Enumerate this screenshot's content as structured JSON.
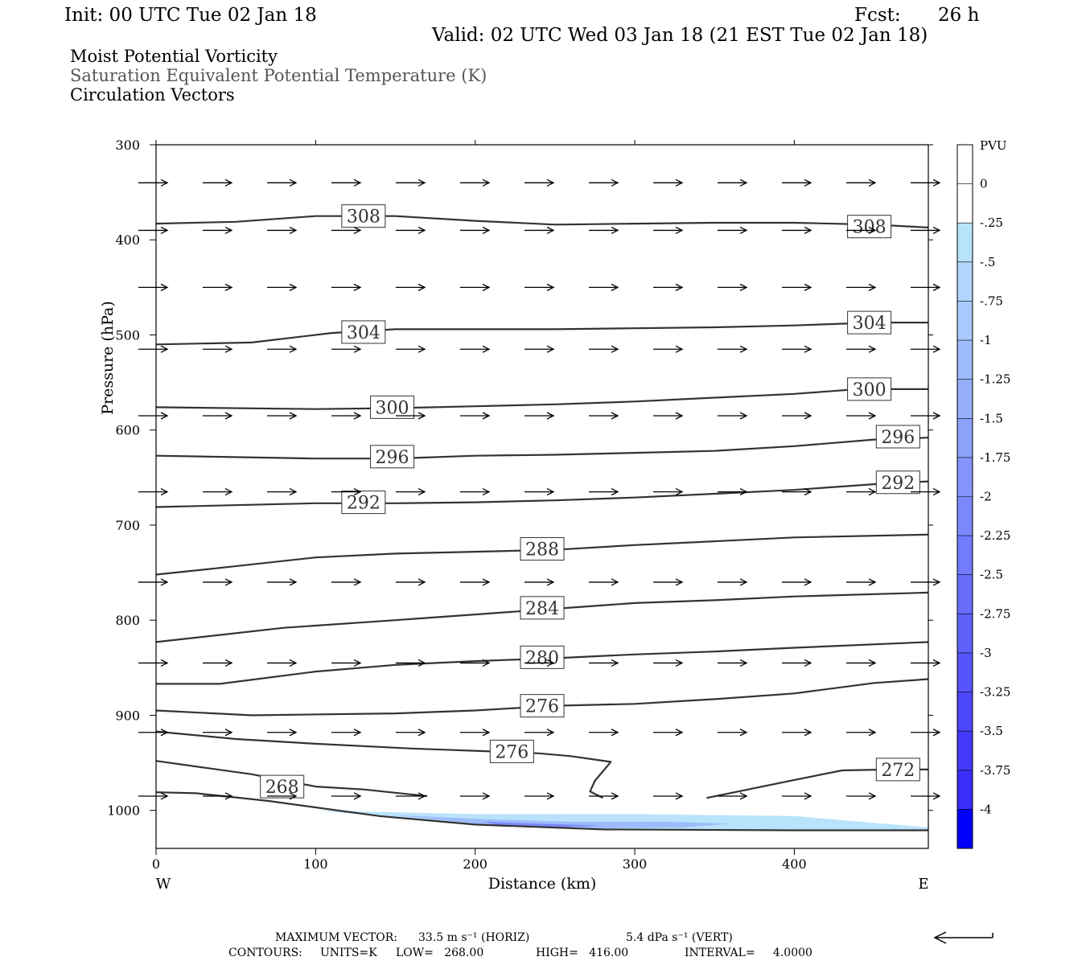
{
  "header": {
    "init": "Init: 00 UTC Tue 02 Jan 18",
    "fcst_label": "Fcst:",
    "fcst_value": "26 h",
    "valid": "Valid: 02 UTC Wed 03 Jan 18 (21 EST Tue 02 Jan 18)"
  },
  "titles": {
    "line1": "Moist Potential Vorticity",
    "line2": "Saturation Equivalent Potential Temperature (K)",
    "line3": "Circulation Vectors"
  },
  "footer": {
    "max_vector_label": "MAXIMUM VECTOR:",
    "max_vector_horiz": "33.5 m s⁻¹ (HORIZ)",
    "max_vector_vert": "5.4 dPa s⁻¹ (VERT)",
    "contours_label": "CONTOURS:",
    "units": "UNITS=K",
    "low": "LOW=   268.00",
    "high": "HIGH=   416.00",
    "interval": "INTERVAL=     4.0000"
  },
  "chart_data": {
    "type": "contour_cross_section",
    "xlabel": "Distance (km)",
    "ylabel": "Pressure (hPa)",
    "xlim": [
      0,
      484
    ],
    "ylim": [
      1040,
      300
    ],
    "x_ticks": [
      0,
      100,
      200,
      300,
      400
    ],
    "y_ticks": [
      300,
      400,
      500,
      600,
      700,
      800,
      900,
      1000
    ],
    "x_end_labels": {
      "left": "W",
      "right": "E"
    },
    "colorbar": {
      "title": "PVU",
      "labels": [
        "0",
        "-.25",
        "-.5",
        "-.75",
        "-1",
        "-1.25",
        "-1.5",
        "-1.75",
        "-2",
        "-2.25",
        "-2.5",
        "-2.75",
        "-3",
        "-3.25",
        "-3.5",
        "-3.75",
        "-4"
      ],
      "colors": [
        "#ffffff",
        "#ffffff",
        "#b9e3fb",
        "#b0d6fb",
        "#a7c9fb",
        "#9ebcfb",
        "#95affb",
        "#8ca2fb",
        "#8395fb",
        "#7a88fb",
        "#717bfb",
        "#686efb",
        "#5f61fb",
        "#5654fb",
        "#4d47fb",
        "#443afb",
        "#3b2dfb",
        "#0000fb"
      ]
    },
    "contour_color": "#333333",
    "contours": [
      {
        "label": "308",
        "points": [
          [
            0,
            383
          ],
          [
            50,
            381
          ],
          [
            100,
            375
          ],
          [
            150,
            375
          ],
          [
            200,
            380
          ],
          [
            250,
            384
          ],
          [
            300,
            383
          ],
          [
            350,
            382
          ],
          [
            400,
            382
          ],
          [
            450,
            384
          ],
          [
            484,
            387
          ]
        ],
        "label_positions": [
          [
            130,
            375
          ],
          [
            447,
            386
          ]
        ]
      },
      {
        "label": "304",
        "points": [
          [
            0,
            510
          ],
          [
            60,
            508
          ],
          [
            110,
            498
          ],
          [
            150,
            494
          ],
          [
            200,
            494
          ],
          [
            250,
            494
          ],
          [
            300,
            493
          ],
          [
            350,
            492
          ],
          [
            400,
            490
          ],
          [
            450,
            487
          ],
          [
            484,
            487
          ]
        ],
        "label_positions": [
          [
            130,
            497
          ],
          [
            447,
            487
          ]
        ]
      },
      {
        "label": "300",
        "points": [
          [
            0,
            576
          ],
          [
            100,
            578
          ],
          [
            150,
            577
          ],
          [
            200,
            575
          ],
          [
            250,
            573
          ],
          [
            300,
            570
          ],
          [
            350,
            566
          ],
          [
            400,
            562
          ],
          [
            440,
            557
          ],
          [
            484,
            557
          ]
        ],
        "label_positions": [
          [
            148,
            576
          ],
          [
            447,
            557
          ]
        ]
      },
      {
        "label": "296",
        "points": [
          [
            0,
            627
          ],
          [
            100,
            630
          ],
          [
            150,
            630
          ],
          [
            200,
            627
          ],
          [
            250,
            626
          ],
          [
            300,
            624
          ],
          [
            350,
            622
          ],
          [
            400,
            617
          ],
          [
            450,
            610
          ],
          [
            484,
            608
          ]
        ],
        "label_positions": [
          [
            148,
            628
          ],
          [
            465,
            607
          ]
        ]
      },
      {
        "label": "292",
        "points": [
          [
            0,
            681
          ],
          [
            100,
            677
          ],
          [
            150,
            677
          ],
          [
            200,
            676
          ],
          [
            250,
            674
          ],
          [
            300,
            671
          ],
          [
            350,
            667
          ],
          [
            400,
            663
          ],
          [
            450,
            657
          ],
          [
            484,
            654
          ]
        ],
        "label_positions": [
          [
            130,
            676
          ],
          [
            465,
            655
          ]
        ]
      },
      {
        "label": "288",
        "points": [
          [
            0,
            752
          ],
          [
            40,
            745
          ],
          [
            100,
            734
          ],
          [
            150,
            730
          ],
          [
            200,
            728
          ],
          [
            250,
            726
          ],
          [
            300,
            721
          ],
          [
            350,
            717
          ],
          [
            400,
            713
          ],
          [
            484,
            710
          ]
        ],
        "label_positions": [
          [
            242,
            725
          ]
        ]
      },
      {
        "label": "284",
        "points": [
          [
            0,
            823
          ],
          [
            80,
            808
          ],
          [
            150,
            800
          ],
          [
            200,
            794
          ],
          [
            250,
            788
          ],
          [
            300,
            782
          ],
          [
            350,
            779
          ],
          [
            400,
            775
          ],
          [
            484,
            771
          ]
        ],
        "label_positions": [
          [
            242,
            787
          ]
        ]
      },
      {
        "label": "280",
        "points": [
          [
            0,
            867
          ],
          [
            40,
            867
          ],
          [
            100,
            854
          ],
          [
            150,
            847
          ],
          [
            200,
            843
          ],
          [
            250,
            840
          ],
          [
            300,
            836
          ],
          [
            350,
            833
          ],
          [
            400,
            829
          ],
          [
            484,
            823
          ]
        ],
        "label_positions": [
          [
            242,
            839
          ]
        ]
      },
      {
        "label": "276",
        "points": [
          [
            0,
            895
          ],
          [
            60,
            900
          ],
          [
            150,
            898
          ],
          [
            200,
            895
          ],
          [
            250,
            890
          ],
          [
            300,
            888
          ],
          [
            350,
            883
          ],
          [
            400,
            877
          ],
          [
            450,
            866
          ],
          [
            484,
            862
          ]
        ],
        "label_positions": [
          [
            242,
            890
          ]
        ]
      },
      {
        "label": "272",
        "points": [
          [
            0,
            917
          ],
          [
            50,
            925
          ],
          [
            100,
            930
          ],
          [
            160,
            935
          ],
          [
            210,
            938
          ],
          [
            240,
            940
          ],
          [
            260,
            943
          ],
          [
            285,
            949
          ],
          [
            275,
            969
          ],
          [
            272,
            980
          ],
          [
            280,
            987
          ]
        ],
        "label_positions": [
          [
            223,
            938
          ]
        ]
      },
      {
        "label": "276b",
        "points": [
          [
            345,
            987
          ],
          [
            380,
            975
          ],
          [
            400,
            968
          ],
          [
            430,
            958
          ],
          [
            460,
            957
          ],
          [
            484,
            957
          ]
        ],
        "label_positions": [
          [
            465,
            957
          ]
        ]
      },
      {
        "label": "268",
        "points": [
          [
            0,
            948
          ],
          [
            60,
            962
          ],
          [
            100,
            975
          ],
          [
            130,
            978
          ],
          [
            170,
            985
          ]
        ],
        "label_positions": [
          [
            79,
            975
          ]
        ]
      },
      {
        "label": "",
        "points": [
          [
            0,
            981
          ],
          [
            25,
            982
          ],
          [
            70,
            990
          ],
          [
            140,
            1006
          ],
          [
            200,
            1015
          ],
          [
            280,
            1020
          ],
          [
            400,
            1021
          ],
          [
            484,
            1021
          ]
        ],
        "label_positions": []
      }
    ],
    "printed_contour_labels": [
      "308",
      "308",
      "304",
      "304",
      "300",
      "300",
      "296",
      "296",
      "292",
      "292",
      "288",
      "284",
      "280",
      "276",
      "276",
      "272",
      "268"
    ],
    "pv_shading": [
      {
        "pvu_min": -0.25,
        "points": [
          [
            100,
            1000
          ],
          [
            200,
            1004
          ],
          [
            300,
            1004
          ],
          [
            400,
            1006
          ],
          [
            484,
            1018
          ],
          [
            484,
            1021
          ],
          [
            400,
            1021
          ],
          [
            280,
            1020
          ],
          [
            200,
            1015
          ],
          [
            140,
            1006
          ],
          [
            100,
            1000
          ]
        ]
      },
      {
        "pvu_min": -1.0,
        "points": [
          [
            150,
            1005
          ],
          [
            200,
            1009
          ],
          [
            260,
            1012
          ],
          [
            320,
            1012
          ],
          [
            360,
            1014
          ],
          [
            330,
            1018
          ],
          [
            260,
            1019
          ],
          [
            200,
            1014
          ],
          [
            150,
            1005
          ]
        ]
      },
      {
        "pvu_min": -2.0,
        "points": [
          [
            205,
            1012
          ],
          [
            240,
            1014
          ],
          [
            280,
            1016
          ],
          [
            250,
            1018
          ],
          [
            215,
            1016
          ]
        ]
      }
    ],
    "vectors": {
      "rows": [
        {
          "p": 340,
          "x_start": 0,
          "x_end": 484,
          "count": 13
        },
        {
          "p": 390,
          "x_start": 0,
          "x_end": 484,
          "count": 13
        },
        {
          "p": 450,
          "x_start": 0,
          "x_end": 484,
          "count": 13
        },
        {
          "p": 515,
          "x_start": 0,
          "x_end": 484,
          "count": 13
        },
        {
          "p": 585,
          "x_start": 0,
          "x_end": 484,
          "count": 13
        },
        {
          "p": 665,
          "x_start": 0,
          "x_end": 484,
          "count": 13
        },
        {
          "p": 760,
          "x_start": 0,
          "x_end": 484,
          "count": 13
        },
        {
          "p": 845,
          "x_start": 0,
          "x_end": 484,
          "count": 13
        },
        {
          "p": 918,
          "x_start": 0,
          "x_end": 484,
          "count": 13
        },
        {
          "p": 985,
          "x_start": 0,
          "x_end": 484,
          "count": 13
        }
      ],
      "reference_vector": "leftward"
    }
  }
}
